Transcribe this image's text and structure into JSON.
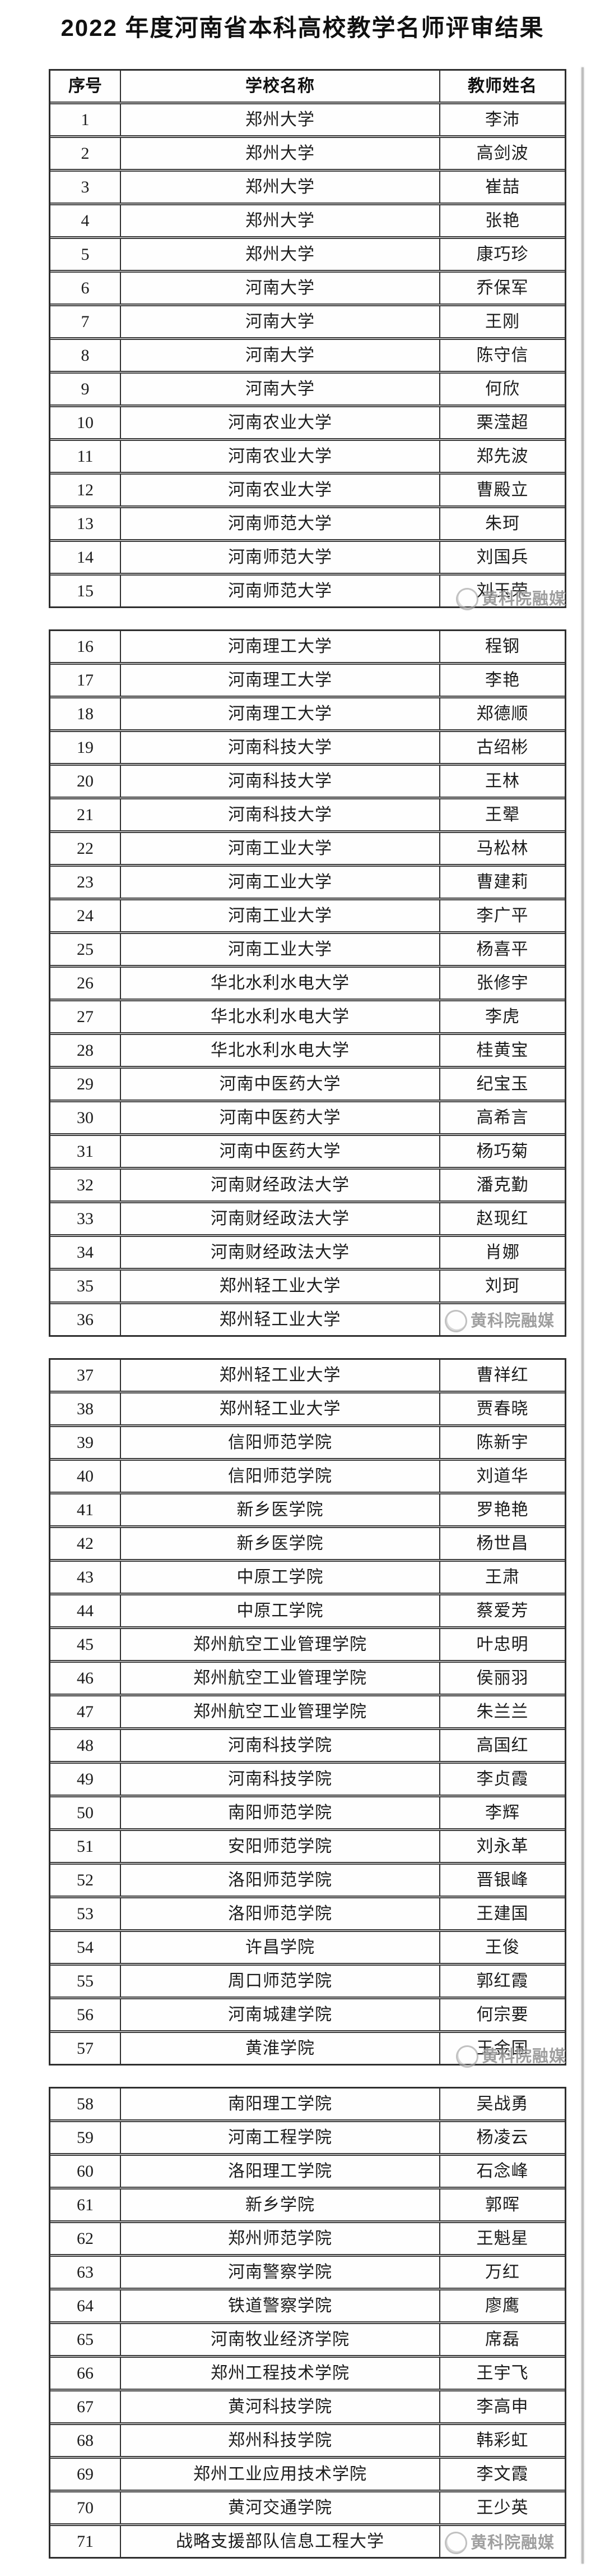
{
  "page": {
    "title": "2022 年度河南省本科高校教学名师评审结果"
  },
  "watermark": {
    "text": "黄科院融媒"
  },
  "table": {
    "headers": {
      "no": "序号",
      "school": "学校名称",
      "teacher": "教师姓名"
    },
    "sections": [
      {
        "show_header": true,
        "rows": [
          {
            "no": "1",
            "school": "郑州大学",
            "teacher": "李沛"
          },
          {
            "no": "2",
            "school": "郑州大学",
            "teacher": "高剑波"
          },
          {
            "no": "3",
            "school": "郑州大学",
            "teacher": "崔喆"
          },
          {
            "no": "4",
            "school": "郑州大学",
            "teacher": "张艳"
          },
          {
            "no": "5",
            "school": "郑州大学",
            "teacher": "康巧珍"
          },
          {
            "no": "6",
            "school": "河南大学",
            "teacher": "乔保军"
          },
          {
            "no": "7",
            "school": "河南大学",
            "teacher": "王刚"
          },
          {
            "no": "8",
            "school": "河南大学",
            "teacher": "陈守信"
          },
          {
            "no": "9",
            "school": "河南大学",
            "teacher": "何欣"
          },
          {
            "no": "10",
            "school": "河南农业大学",
            "teacher": "栗滢超"
          },
          {
            "no": "11",
            "school": "河南农业大学",
            "teacher": "郑先波"
          },
          {
            "no": "12",
            "school": "河南农业大学",
            "teacher": "曹殿立"
          },
          {
            "no": "13",
            "school": "河南师范大学",
            "teacher": "朱珂"
          },
          {
            "no": "14",
            "school": "河南师范大学",
            "teacher": "刘国兵"
          },
          {
            "no": "15",
            "school": "河南师范大学",
            "teacher": "刘玉荣",
            "watermark": "over"
          }
        ]
      },
      {
        "show_header": false,
        "rows": [
          {
            "no": "16",
            "school": "河南理工大学",
            "teacher": "程钢"
          },
          {
            "no": "17",
            "school": "河南理工大学",
            "teacher": "李艳"
          },
          {
            "no": "18",
            "school": "河南理工大学",
            "teacher": "郑德顺"
          },
          {
            "no": "19",
            "school": "河南科技大学",
            "teacher": "古绍彬"
          },
          {
            "no": "20",
            "school": "河南科技大学",
            "teacher": "王林"
          },
          {
            "no": "21",
            "school": "河南科技大学",
            "teacher": "王翚"
          },
          {
            "no": "22",
            "school": "河南工业大学",
            "teacher": "马松林"
          },
          {
            "no": "23",
            "school": "河南工业大学",
            "teacher": "曹建莉"
          },
          {
            "no": "24",
            "school": "河南工业大学",
            "teacher": "李广平"
          },
          {
            "no": "25",
            "school": "河南工业大学",
            "teacher": "杨喜平"
          },
          {
            "no": "26",
            "school": "华北水利水电大学",
            "teacher": "张修宇"
          },
          {
            "no": "27",
            "school": "华北水利水电大学",
            "teacher": "李虎"
          },
          {
            "no": "28",
            "school": "华北水利水电大学",
            "teacher": "桂黄宝"
          },
          {
            "no": "29",
            "school": "河南中医药大学",
            "teacher": "纪宝玉"
          },
          {
            "no": "30",
            "school": "河南中医药大学",
            "teacher": "高希言"
          },
          {
            "no": "31",
            "school": "河南中医药大学",
            "teacher": "杨巧菊"
          },
          {
            "no": "32",
            "school": "河南财经政法大学",
            "teacher": "潘克勤"
          },
          {
            "no": "33",
            "school": "河南财经政法大学",
            "teacher": "赵现红"
          },
          {
            "no": "34",
            "school": "河南财经政法大学",
            "teacher": "肖娜"
          },
          {
            "no": "35",
            "school": "郑州轻工业大学",
            "teacher": "刘珂"
          },
          {
            "no": "36",
            "school": "郑州轻工业大学",
            "teacher": "",
            "watermark": "only"
          }
        ]
      },
      {
        "show_header": false,
        "rows": [
          {
            "no": "37",
            "school": "郑州轻工业大学",
            "teacher": "曹祥红"
          },
          {
            "no": "38",
            "school": "郑州轻工业大学",
            "teacher": "贾春晓"
          },
          {
            "no": "39",
            "school": "信阳师范学院",
            "teacher": "陈新宇"
          },
          {
            "no": "40",
            "school": "信阳师范学院",
            "teacher": "刘道华"
          },
          {
            "no": "41",
            "school": "新乡医学院",
            "teacher": "罗艳艳"
          },
          {
            "no": "42",
            "school": "新乡医学院",
            "teacher": "杨世昌"
          },
          {
            "no": "43",
            "school": "中原工学院",
            "teacher": "王肃"
          },
          {
            "no": "44",
            "school": "中原工学院",
            "teacher": "蔡爱芳"
          },
          {
            "no": "45",
            "school": "郑州航空工业管理学院",
            "teacher": "叶忠明"
          },
          {
            "no": "46",
            "school": "郑州航空工业管理学院",
            "teacher": "侯丽羽"
          },
          {
            "no": "47",
            "school": "郑州航空工业管理学院",
            "teacher": "朱兰兰"
          },
          {
            "no": "48",
            "school": "河南科技学院",
            "teacher": "高国红"
          },
          {
            "no": "49",
            "school": "河南科技学院",
            "teacher": "李贞霞"
          },
          {
            "no": "50",
            "school": "南阳师范学院",
            "teacher": "李辉"
          },
          {
            "no": "51",
            "school": "安阳师范学院",
            "teacher": "刘永革"
          },
          {
            "no": "52",
            "school": "洛阳师范学院",
            "teacher": "晋银峰"
          },
          {
            "no": "53",
            "school": "洛阳师范学院",
            "teacher": "王建国"
          },
          {
            "no": "54",
            "school": "许昌学院",
            "teacher": "王俊"
          },
          {
            "no": "55",
            "school": "周口师范学院",
            "teacher": "郭红霞"
          },
          {
            "no": "56",
            "school": "河南城建学院",
            "teacher": "何宗要"
          },
          {
            "no": "57",
            "school": "黄淮学院",
            "teacher": "王金国",
            "watermark": "over"
          }
        ]
      },
      {
        "show_header": false,
        "rows": [
          {
            "no": "58",
            "school": "南阳理工学院",
            "teacher": "吴战勇"
          },
          {
            "no": "59",
            "school": "河南工程学院",
            "teacher": "杨凌云"
          },
          {
            "no": "60",
            "school": "洛阳理工学院",
            "teacher": "石念峰"
          },
          {
            "no": "61",
            "school": "新乡学院",
            "teacher": "郭晖"
          },
          {
            "no": "62",
            "school": "郑州师范学院",
            "teacher": "王魁星"
          },
          {
            "no": "63",
            "school": "河南警察学院",
            "teacher": "万红"
          },
          {
            "no": "64",
            "school": "铁道警察学院",
            "teacher": "廖鹰"
          },
          {
            "no": "65",
            "school": "河南牧业经济学院",
            "teacher": "席磊"
          },
          {
            "no": "66",
            "school": "郑州工程技术学院",
            "teacher": "王宇飞"
          },
          {
            "no": "67",
            "school": "黄河科技学院",
            "teacher": "李高申"
          },
          {
            "no": "68",
            "school": "郑州科技学院",
            "teacher": "韩彩虹"
          },
          {
            "no": "69",
            "school": "郑州工业应用技术学院",
            "teacher": "李文霞"
          },
          {
            "no": "70",
            "school": "黄河交通学院",
            "teacher": "王少英"
          },
          {
            "no": "71",
            "school": "战略支援部队信息工程大学",
            "teacher": "",
            "watermark": "only"
          }
        ]
      }
    ]
  }
}
